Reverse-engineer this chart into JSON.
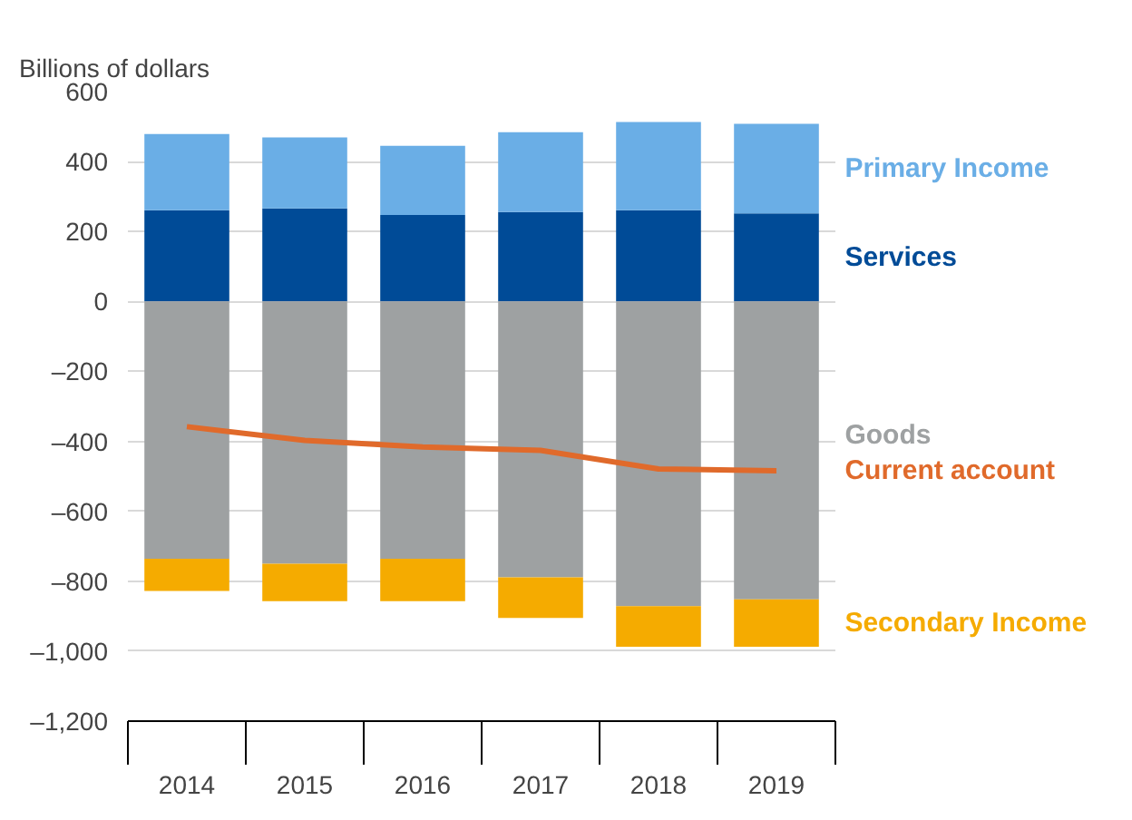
{
  "chart_data": {
    "type": "bar",
    "ylabel": "Billions of dollars",
    "stacked": true,
    "categories": [
      "2014",
      "2015",
      "2016",
      "2017",
      "2018",
      "2019"
    ],
    "series": [
      {
        "name": "Services",
        "color": "#004b97",
        "values": [
          261,
          266,
          247,
          256,
          261,
          252
        ]
      },
      {
        "name": "Primary Income",
        "color": "#6aaee6",
        "values": [
          218,
          203,
          198,
          228,
          252,
          256
        ]
      },
      {
        "name": "Goods",
        "color": "#9ea1a2",
        "values": [
          -736,
          -750,
          -736,
          -789,
          -871,
          -852
        ]
      },
      {
        "name": "Secondary Income",
        "color": "#f5ab00",
        "values": [
          -92,
          -107,
          -121,
          -116,
          -116,
          -135
        ]
      },
      {
        "name": "Current account",
        "color": "#e06a2b",
        "type": "line",
        "values": [
          -358,
          -397,
          -416,
          -426,
          -479,
          -484
        ]
      }
    ],
    "ylim": [
      -1200,
      600
    ],
    "yticks": [
      {
        "value": -1200,
        "label": "–1,200"
      },
      {
        "value": -1000,
        "label": "–1,000"
      },
      {
        "value": -800,
        "label": "–800"
      },
      {
        "value": -600,
        "label": "–600"
      },
      {
        "value": -400,
        "label": "–400"
      },
      {
        "value": -200,
        "label": "–200"
      },
      0,
      200,
      400,
      600
    ],
    "grid": "y"
  }
}
